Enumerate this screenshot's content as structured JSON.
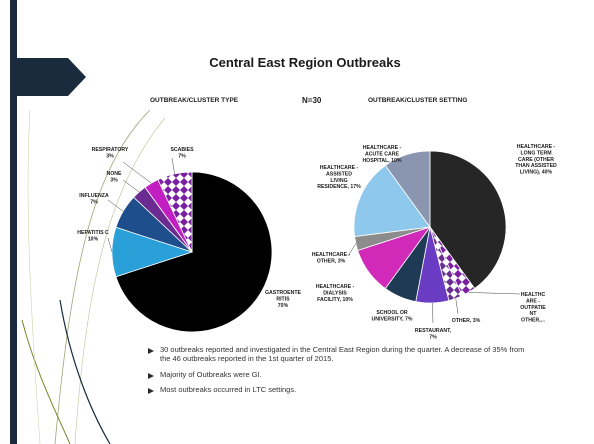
{
  "slide": {
    "title": "Central East Region Outbreaks",
    "n_label": "N=30",
    "bullets": [
      "30 outbreaks reported and investigated in the Central East Region during the quarter. A decrease of 35% from the 46 outbreaks reported in the 1st quarter of 2015.",
      "Majority of Outbreaks were GI.",
      "Most outbreaks occurred in  LTC settings."
    ]
  },
  "chart_data": [
    {
      "type": "pie",
      "title": "OUTBREAK/CLUSTER TYPE",
      "slices": [
        {
          "label": "GASTROENTERITIS",
          "value": 70,
          "display": [
            "GASTROENTE",
            "RITIS",
            "70%"
          ],
          "color": "#000000"
        },
        {
          "label": "HEPATITIS C",
          "value": 10,
          "display": [
            "HEPATITIS C",
            "10%"
          ],
          "color": "#2aa0d8"
        },
        {
          "label": "INFLUENZA",
          "value": 7,
          "display": [
            "INFLUENZA",
            "7%"
          ],
          "color": "#1f4e8c"
        },
        {
          "label": "NONE",
          "value": 3,
          "display": [
            "NONE",
            "3%"
          ],
          "color": "#6a2c91"
        },
        {
          "label": "RESPIRATORY",
          "value": 3,
          "display": [
            "RESPIRATORY",
            "3%"
          ],
          "color": "#c21fc2"
        },
        {
          "label": "SCABIES",
          "value": 7,
          "display": [
            "SCABIES",
            "7%"
          ],
          "color": "#7a1fa0",
          "pattern": true
        }
      ]
    },
    {
      "type": "pie",
      "title": "OUTBREAK/CLUSTER SETTING",
      "slices": [
        {
          "label": "HEALTHCARE - LONG TERM CARE (OTHER THAN ASSISTED LIVING)",
          "value": 40,
          "display": [
            "HEALTHCARE -",
            "LONG TERM",
            "CARE (OTHER",
            "THAN ASSISTED",
            "LIVING), 40%"
          ],
          "color": "#262626"
        },
        {
          "label": "HEALTHCARE - OUTPATIENT OTHER",
          "value": 3,
          "display": [
            "HEALTHC",
            "ARE -",
            "OUTPATIE",
            "NT",
            "OTHER,..."
          ],
          "color": "#7a1fa0",
          "pattern": true
        },
        {
          "label": "OTHER",
          "value": 3,
          "display": [
            "OTHER, 3%"
          ],
          "color": "#6a2c91",
          "pattern": true
        },
        {
          "label": "RESTAURANT",
          "value": 7,
          "display": [
            "RESTAURANT,",
            "7%"
          ],
          "color": "#6a3cc4"
        },
        {
          "label": "SCHOOL OR UNIVERSITY",
          "value": 7,
          "display": [
            "SCHOOL OR",
            "UNIVERSITY, 7%"
          ],
          "color": "#1f3a55"
        },
        {
          "label": "HEALTHCARE - DIALYSIS FACILITY",
          "value": 10,
          "display": [
            "HEALTHCARE -",
            "DIALYSIS",
            "FACILITY, 10%"
          ],
          "color": "#d12ab8"
        },
        {
          "label": "HEALTHCARE - OTHER",
          "value": 3,
          "display": [
            "HEALTHCARE -",
            "OTHER, 3%"
          ],
          "color": "#8c8c8c"
        },
        {
          "label": "HEALTHCARE - ASSISTED LIVING RESIDENCE",
          "value": 17,
          "display": [
            "HEALTHCARE -",
            "ASSISTED",
            "LIVING",
            "RESIDENCE, 17%"
          ],
          "color": "#8ec8ec"
        },
        {
          "label": "HEALTHCARE - ACUTE CARE HOSPITAL",
          "value": 10,
          "display": [
            "HEALTHCARE -",
            "ACUTE CARE",
            "HOSPITAL, 10%"
          ],
          "color": "#8a96b0"
        }
      ]
    }
  ],
  "colors": {
    "accent": "#1b2b3e",
    "swoosh": "#6f8a2a",
    "background": "#ffffff"
  }
}
